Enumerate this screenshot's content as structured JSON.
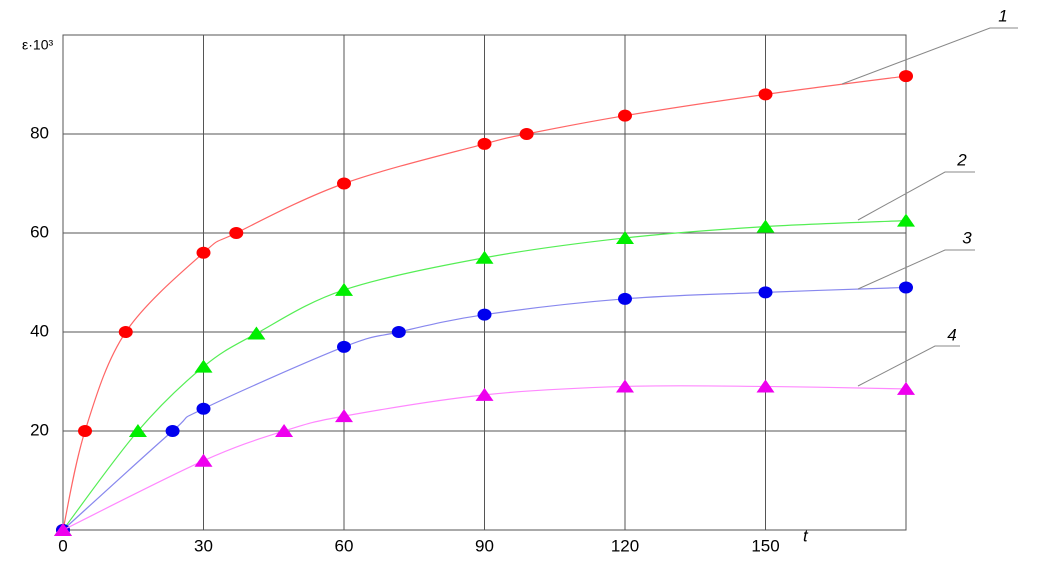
{
  "chart_data": {
    "type": "line",
    "y_label": "ε·10³",
    "x_label": "t",
    "xlim": [
      0,
      180
    ],
    "ylim": [
      0,
      100
    ],
    "xticks": [
      0,
      30,
      60,
      90,
      120,
      150
    ],
    "yticks": [
      20,
      40,
      60,
      80
    ],
    "grid": true,
    "series": [
      {
        "name": "1",
        "color": "#ff0000",
        "line_color": "#ff6666",
        "marker": "circle",
        "x": [
          0,
          4.7,
          13.4,
          30,
          37,
          60,
          90,
          99,
          120,
          150,
          180
        ],
        "values": [
          0,
          20,
          40,
          56,
          60,
          70,
          78,
          80,
          83.7,
          88,
          91.7
        ]
      },
      {
        "name": "2",
        "color": "#00ee00",
        "line_color": "#55ee55",
        "marker": "triangle",
        "x": [
          0,
          16,
          30,
          41.3,
          60,
          90,
          120,
          150,
          180
        ],
        "values": [
          0,
          20,
          33,
          39.7,
          48.5,
          55,
          59,
          61.3,
          62.5
        ]
      },
      {
        "name": "3",
        "color": "#0000ee",
        "line_color": "#8888ee",
        "marker": "circle",
        "x": [
          0,
          23.4,
          30,
          60,
          71.7,
          90,
          120,
          150,
          180
        ],
        "values": [
          0,
          20,
          24.5,
          37,
          40,
          43.5,
          46.7,
          48,
          49
        ]
      },
      {
        "name": "4",
        "color": "#ee00ee",
        "line_color": "#ff88ff",
        "marker": "triangle",
        "x": [
          0,
          30,
          47.2,
          60,
          90,
          120,
          150,
          180
        ],
        "values": [
          0,
          14,
          20,
          23,
          27.3,
          29,
          29,
          28.5
        ]
      }
    ]
  }
}
